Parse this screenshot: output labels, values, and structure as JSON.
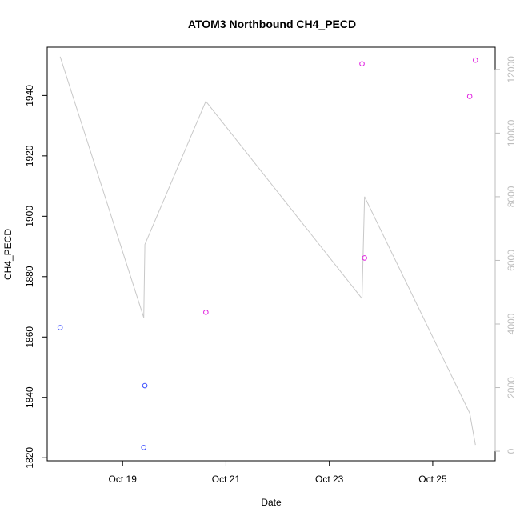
{
  "chart_data": {
    "type": "scatter",
    "title": "ATOM3 Northbound CH4_PECD",
    "xlabel": "Date",
    "ylabel": "CH4_PECD",
    "xlim": [
      "2016-10-17T13:00",
      "2016-10-26T05:00"
    ],
    "ylim": [
      1819,
      1956
    ],
    "y2lim": [
      -300,
      12700
    ],
    "x_ticks": [
      {
        "date": "2016-10-19T00:00",
        "label": "Oct 19"
      },
      {
        "date": "2016-10-21T00:00",
        "label": "Oct 21"
      },
      {
        "date": "2016-10-23T00:00",
        "label": "Oct 23"
      },
      {
        "date": "2016-10-25T00:00",
        "label": "Oct 25"
      }
    ],
    "y_ticks": [
      1820,
      1840,
      1860,
      1880,
      1900,
      1920,
      1940
    ],
    "y2_ticks": [
      0,
      2000,
      4000,
      6000,
      8000,
      10000,
      12000
    ],
    "grid": false,
    "legend": "none",
    "series": [
      {
        "color": "#3a4dff",
        "marker": "circle-open",
        "points": [
          {
            "x": "2016-10-17T19:00",
            "y": 1863.1
          },
          {
            "x": "2016-10-19T09:50",
            "y": 1823.4
          },
          {
            "x": "2016-10-19T10:20",
            "y": 1843.9
          }
        ]
      },
      {
        "color": "#e020e0",
        "marker": "circle-open",
        "points": [
          {
            "x": "2016-10-20T14:40",
            "y": 1868.2
          },
          {
            "x": "2016-10-23T15:10",
            "y": 1950.5
          },
          {
            "x": "2016-10-23T16:20",
            "y": 1886.2
          },
          {
            "x": "2016-10-25T17:10",
            "y": 1939.7
          },
          {
            "x": "2016-10-25T19:50",
            "y": 1951.7
          }
        ]
      },
      {
        "color": "#c8c8c8",
        "marker": "line",
        "axis": "right",
        "points": [
          {
            "x": "2016-10-17T19:00",
            "y": 12400
          },
          {
            "x": "2016-10-19T09:50",
            "y": 4200
          },
          {
            "x": "2016-10-19T10:20",
            "y": 6500
          },
          {
            "x": "2016-10-20T14:40",
            "y": 11000
          },
          {
            "x": "2016-10-23T15:10",
            "y": 4800
          },
          {
            "x": "2016-10-23T16:20",
            "y": 8000
          },
          {
            "x": "2016-10-25T17:10",
            "y": 1200
          },
          {
            "x": "2016-10-25T19:50",
            "y": 200
          }
        ]
      }
    ]
  }
}
